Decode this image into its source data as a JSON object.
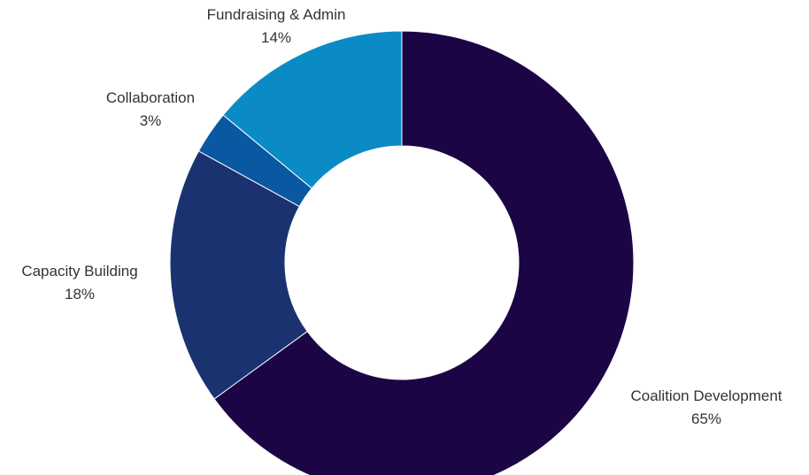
{
  "chart_data": {
    "type": "pie",
    "donut": true,
    "title": "",
    "categories": [
      "Coalition Development",
      "Capacity Building",
      "Collaboration",
      "Fundraising & Admin"
    ],
    "values": [
      65,
      18,
      3,
      14
    ],
    "value_labels": [
      "65%",
      "18%",
      "3%",
      "14%"
    ],
    "colors": [
      "#1b0545",
      "#1a3370",
      "#0a57a2",
      "#0a8bc6"
    ],
    "start_position": "12 o'clock",
    "direction": "clockwise",
    "legend": "none (labels placed next to slices)"
  }
}
